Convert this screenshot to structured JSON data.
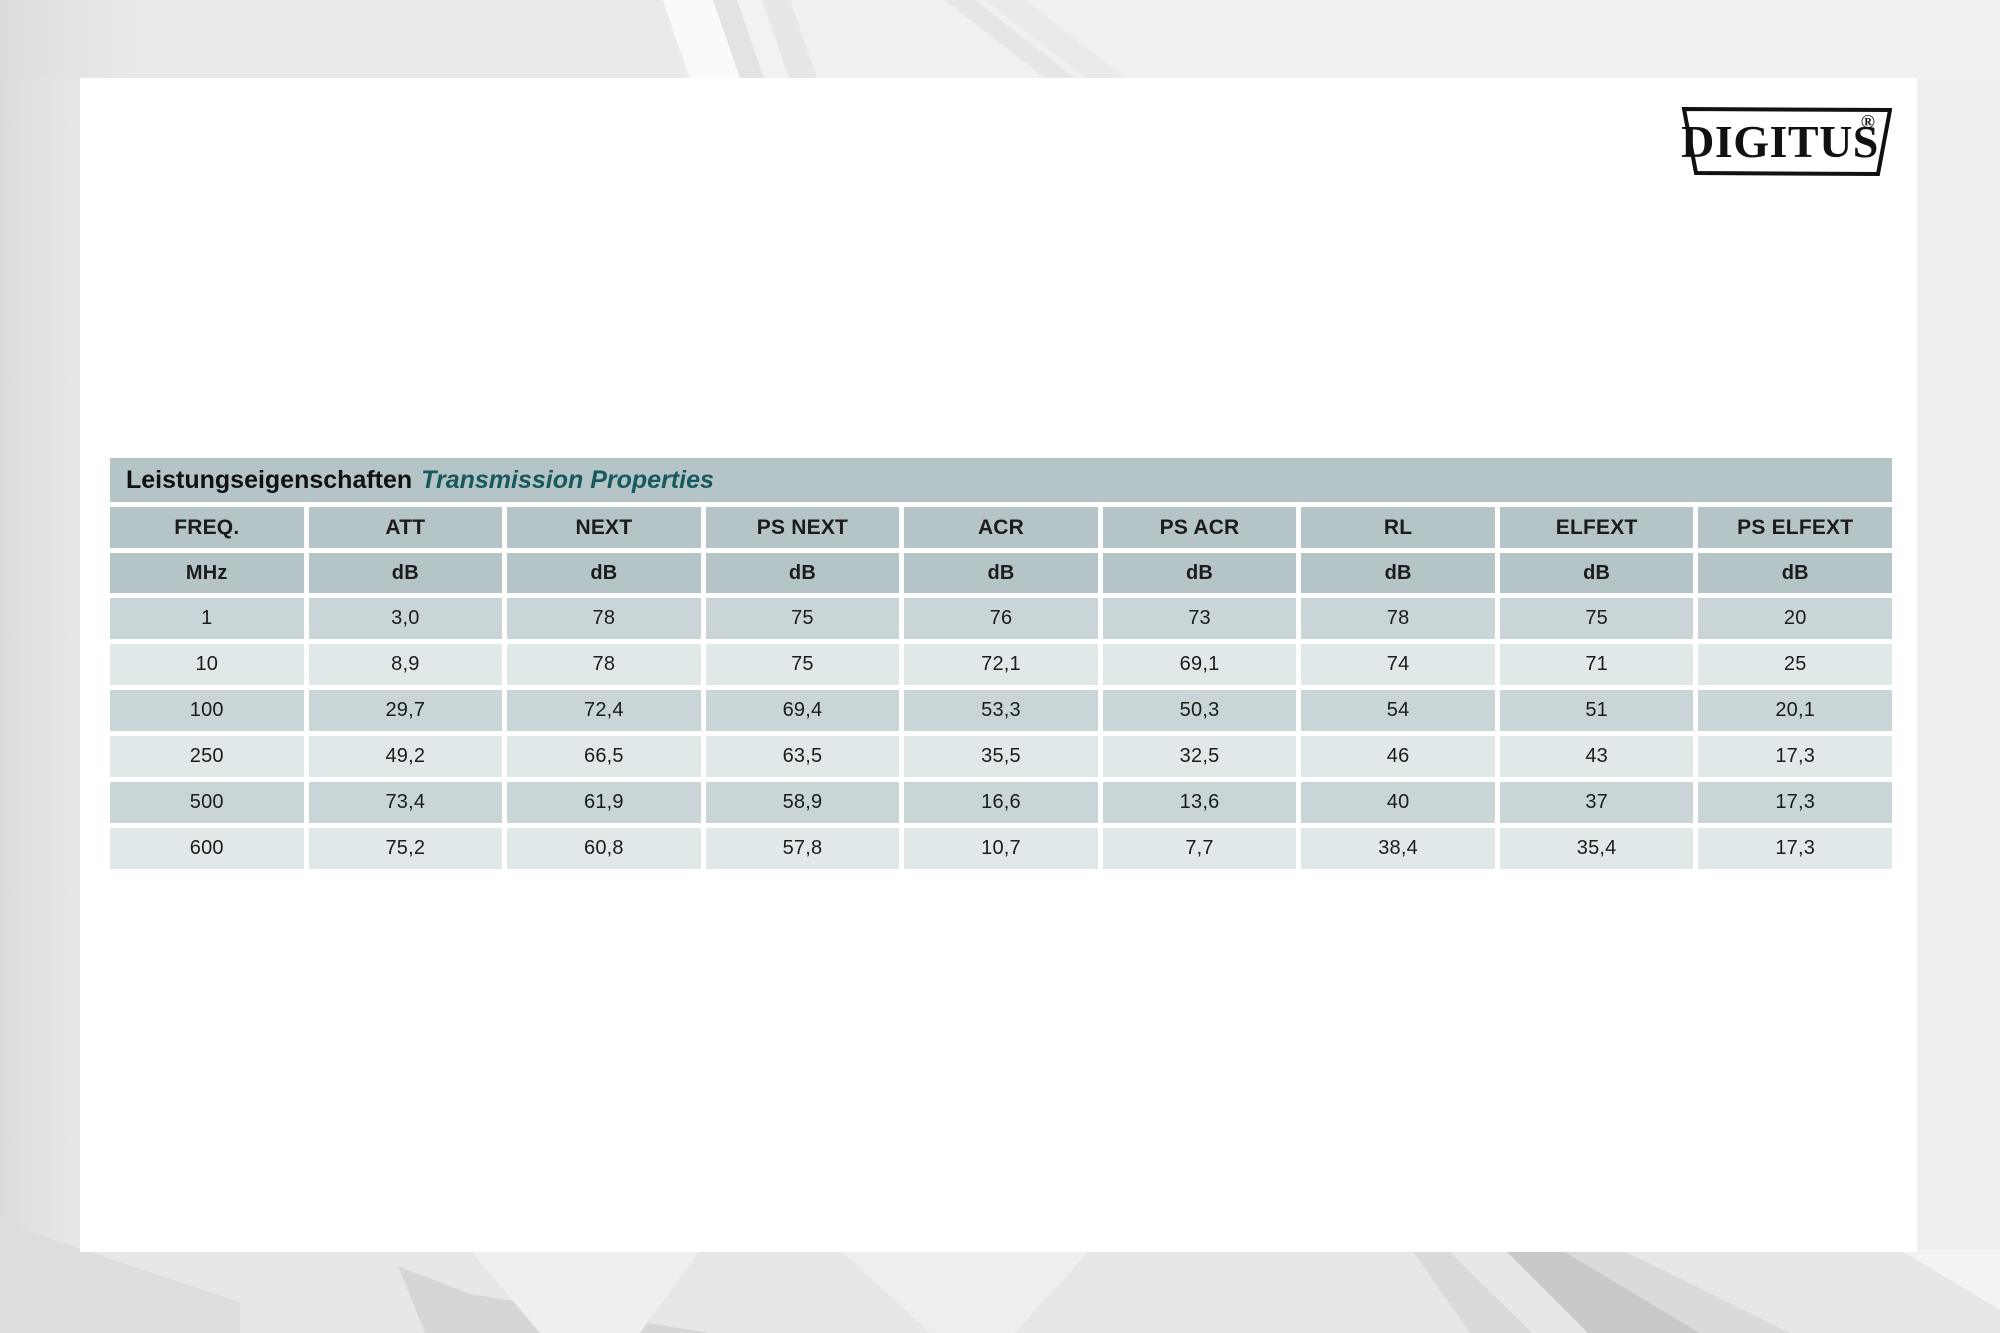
{
  "brand": {
    "logo_text": "DIGITUS",
    "registered_mark": "®"
  },
  "table": {
    "title_de": "Leistungseigenschaften",
    "title_en": "Transmission Properties",
    "columns": [
      "FREQ.",
      "ATT",
      "NEXT",
      "PS NEXT",
      "ACR",
      "PS ACR",
      "RL",
      "ELFEXT",
      "PS ELFEXT"
    ],
    "units": [
      "MHz",
      "dB",
      "dB",
      "dB",
      "dB",
      "dB",
      "dB",
      "dB",
      "dB"
    ],
    "rows": [
      [
        "1",
        "3,0",
        "78",
        "75",
        "76",
        "73",
        "78",
        "75",
        "20"
      ],
      [
        "10",
        "8,9",
        "78",
        "75",
        "72,1",
        "69,1",
        "74",
        "71",
        "25"
      ],
      [
        "100",
        "29,7",
        "72,4",
        "69,4",
        "53,3",
        "50,3",
        "54",
        "51",
        "20,1"
      ],
      [
        "250",
        "49,2",
        "66,5",
        "63,5",
        "35,5",
        "32,5",
        "46",
        "43",
        "17,3"
      ],
      [
        "500",
        "73,4",
        "61,9",
        "58,9",
        "16,6",
        "13,6",
        "40",
        "37",
        "17,3"
      ],
      [
        "600",
        "75,2",
        "60,8",
        "57,8",
        "10,7",
        "7,7",
        "38,4",
        "35,4",
        "17,3"
      ]
    ]
  },
  "colors": {
    "header_bg": "#b5c4c6",
    "row_dark": "#c9d5d7",
    "row_light": "#e0e8e9",
    "title_accent_teal": "#17595c",
    "text": "#1c1c1c",
    "page_bg": "#efefef"
  }
}
